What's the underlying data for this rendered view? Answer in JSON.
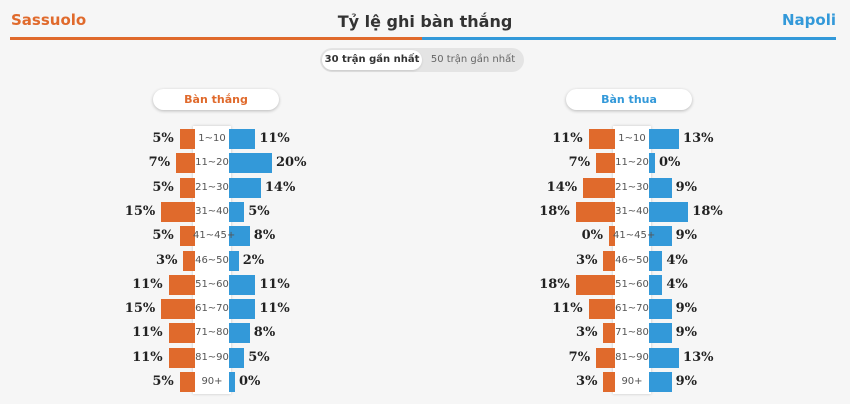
{
  "header": {
    "team_home": "Sassuolo",
    "team_away": "Napoli",
    "title": "Tỷ lệ ghi bàn thắng"
  },
  "toggle": {
    "active": "30 trận gần nhất",
    "inactive": "50 trận gần nhất"
  },
  "panels": [
    {
      "label": "Bàn thắng",
      "rows": [
        {
          "range": "1~10",
          "home": 5,
          "away": 11
        },
        {
          "range": "11~20",
          "home": 7,
          "away": 20
        },
        {
          "range": "21~30",
          "home": 5,
          "away": 14
        },
        {
          "range": "31~40",
          "home": 15,
          "away": 5
        },
        {
          "range": "41~45+",
          "home": 5,
          "away": 8
        },
        {
          "range": "46~50",
          "home": 3,
          "away": 2
        },
        {
          "range": "51~60",
          "home": 11,
          "away": 11
        },
        {
          "range": "61~70",
          "home": 15,
          "away": 11
        },
        {
          "range": "71~80",
          "home": 11,
          "away": 8
        },
        {
          "range": "81~90",
          "home": 11,
          "away": 5
        },
        {
          "range": "90+",
          "home": 5,
          "away": 0
        }
      ]
    },
    {
      "label": "Bàn thua",
      "rows": [
        {
          "range": "1~10",
          "home": 11,
          "away": 13
        },
        {
          "range": "11~20",
          "home": 7,
          "away": 0
        },
        {
          "range": "21~30",
          "home": 14,
          "away": 9
        },
        {
          "range": "31~40",
          "home": 18,
          "away": 18
        },
        {
          "range": "41~45+",
          "home": 0,
          "away": 9
        },
        {
          "range": "46~50",
          "home": 3,
          "away": 4
        },
        {
          "range": "51~60",
          "home": 18,
          "away": 4
        },
        {
          "range": "61~70",
          "home": 11,
          "away": 9
        },
        {
          "range": "71~80",
          "home": 3,
          "away": 9
        },
        {
          "range": "81~90",
          "home": 7,
          "away": 13
        },
        {
          "range": "90+",
          "home": 3,
          "away": 9
        }
      ]
    }
  ],
  "colors": {
    "home": "#e06a2c",
    "away": "#3399d9"
  }
}
